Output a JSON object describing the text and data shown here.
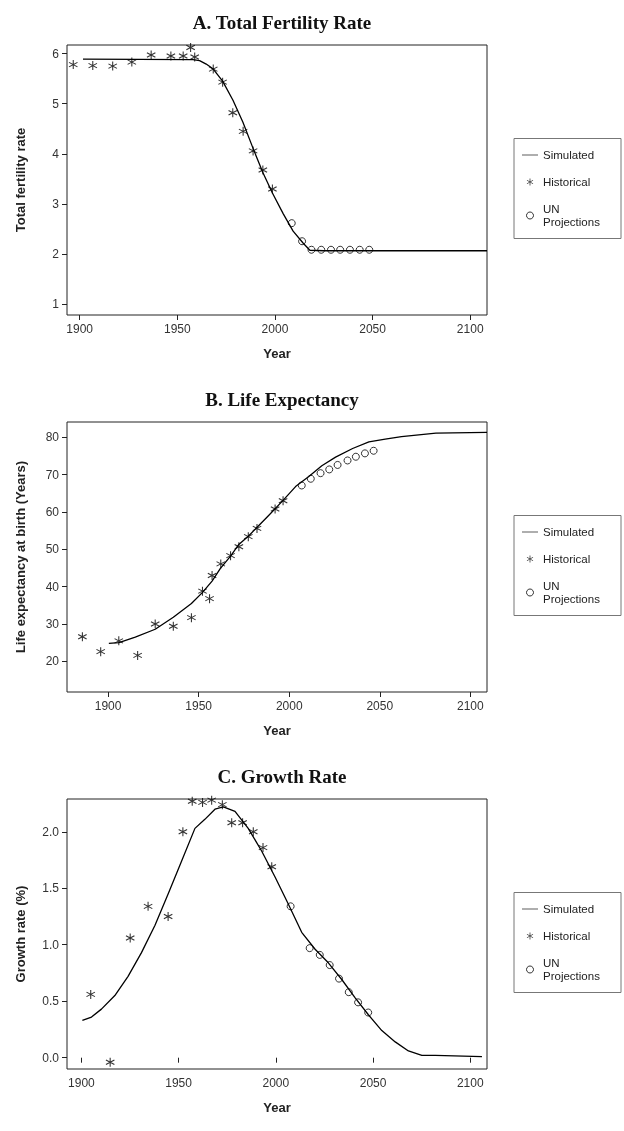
{
  "chart_data": [
    {
      "type": "line",
      "title": "A. Total Fertility Rate",
      "xlabel": "Year",
      "ylabel": "Total fertility rate",
      "xlim": [
        1893.5,
        2108.6
      ],
      "ylim": [
        0.79,
        6.17
      ],
      "xticks": [
        1900,
        1950,
        2000,
        2050,
        2100
      ],
      "yticks": [
        1,
        2,
        3,
        4,
        5,
        6
      ],
      "grid": false,
      "legend": "right",
      "series": [
        {
          "name": "Simulated",
          "type": "line",
          "color": "#000000",
          "marker": "none",
          "line_style": "solid",
          "x": [
            1901.7,
            1958,
            1961.4,
            1964.8,
            1968.4,
            1973.2,
            1978.5,
            1983.6,
            1988.8,
            1993.8,
            1998.7,
            2004.2,
            2009.3,
            2014.5,
            2017.9,
            2025,
            2108.6
          ],
          "values": [
            5.89,
            5.88,
            5.86,
            5.79,
            5.69,
            5.45,
            5.07,
            4.63,
            4.11,
            3.63,
            3.22,
            2.81,
            2.46,
            2.22,
            2.08,
            2.07,
            2.07
          ]
        },
        {
          "name": "Historical",
          "type": "scatter",
          "color": "#000000",
          "marker": "cross",
          "x": [
            1896.7,
            1906.7,
            1916.9,
            1926.7,
            1936.6,
            1946.7,
            1953.0,
            1956.8,
            1958.9,
            1968.4,
            1973.2,
            1978.4,
            1983.7,
            1988.8,
            1993.8,
            1998.7
          ],
          "values": [
            5.78,
            5.76,
            5.75,
            5.83,
            5.97,
            5.95,
            5.95,
            6.12,
            5.93,
            5.69,
            5.43,
            4.82,
            4.45,
            4.06,
            3.68,
            3.3
          ]
        },
        {
          "name": "UN Projections",
          "type": "scatter",
          "color": "#000000",
          "marker": "circle",
          "x": [
            2008.6,
            2013.9,
            2018.7,
            2023.7,
            2028.7,
            2033.4,
            2038.4,
            2043.4,
            2048.3
          ],
          "values": [
            2.62,
            2.26,
            2.09,
            2.09,
            2.09,
            2.09,
            2.09,
            2.09,
            2.09
          ]
        }
      ]
    },
    {
      "type": "line",
      "title": "B. Life Expectancy",
      "xlabel": "Year",
      "ylabel": "Life expectancy at birth (Years)",
      "xlim": [
        1877.3,
        2109.2
      ],
      "ylim": [
        11.8,
        84.1
      ],
      "xticks": [
        1900,
        1950,
        2000,
        2050,
        2100
      ],
      "yticks": [
        20,
        30,
        40,
        50,
        60,
        70,
        80
      ],
      "grid": false,
      "legend": "right",
      "series": [
        {
          "name": "Simulated",
          "type": "line",
          "color": "#000000",
          "marker": "none",
          "line_style": "solid",
          "x": [
            1900.4,
            1906,
            1915,
            1926,
            1936,
            1946,
            1952,
            1957.4,
            1962,
            1967.6,
            1972,
            1977.4,
            1982,
            1988.5,
            1996.6,
            2003.5,
            2011,
            2018,
            2025.6,
            2035,
            2044,
            2053,
            2062,
            2081,
            2109.2
          ],
          "values": [
            24.8,
            25.0,
            26.5,
            28.6,
            31.8,
            35.5,
            38.4,
            41.5,
            44.9,
            48.2,
            51.2,
            53.5,
            55.8,
            59.0,
            63.1,
            66.8,
            69.6,
            72.4,
            74.7,
            77.0,
            78.8,
            79.5,
            80.2,
            81.1,
            81.3
          ]
        },
        {
          "name": "Historical",
          "type": "scatter",
          "color": "#000000",
          "marker": "cross",
          "x": [
            1885.8,
            1895.9,
            1905.9,
            1916.3,
            1926.0,
            1936.0,
            1946.0,
            1952.1,
            1956.0,
            1957.4,
            1962.2,
            1967.6,
            1972.2,
            1977.4,
            1982.2,
            1992.2,
            1996.6
          ],
          "values": [
            26.6,
            22.6,
            25.5,
            21.6,
            30.0,
            29.4,
            31.7,
            38.8,
            36.8,
            43.0,
            46.1,
            48.3,
            50.7,
            53.4,
            55.6,
            60.8,
            63.0
          ]
        },
        {
          "name": "UN Projections",
          "type": "scatter",
          "color": "#000000",
          "marker": "circle",
          "x": [
            2006.9,
            2011.9,
            2017.3,
            2022.1,
            2026.7,
            2032.2,
            2036.8,
            2041.8,
            2046.6
          ],
          "values": [
            67.1,
            68.9,
            70.4,
            71.4,
            72.6,
            73.8,
            74.8,
            75.7,
            76.4
          ]
        }
      ]
    },
    {
      "type": "line",
      "title": "C. Growth Rate",
      "xlabel": "Year",
      "ylabel": "Growth rate (%)",
      "xlim": [
        1892.6,
        2108.6
      ],
      "ylim": [
        -0.1,
        2.29
      ],
      "xticks": [
        1900,
        1950,
        2000,
        2050,
        2100
      ],
      "yticks": [
        {
          "value": 0,
          "label": "0.0"
        },
        {
          "value": 0.5,
          "label": "0.5"
        },
        {
          "value": 1,
          "label": "1.0"
        },
        {
          "value": 1.5,
          "label": "1.5"
        },
        {
          "value": 2,
          "label": "2.0"
        }
      ],
      "grid": false,
      "legend": "right",
      "series": [
        {
          "name": "Simulated",
          "type": "line",
          "color": "#000000",
          "marker": "none",
          "line_style": "solid",
          "x": [
            1900.5,
            1905.2,
            1910.3,
            1917.2,
            1924,
            1930.9,
            1937.8,
            1944.6,
            1951.5,
            1958.4,
            1963.5,
            1968.7,
            1973,
            1979,
            1985.8,
            1992.7,
            1999.6,
            2006.4,
            2013.3,
            2020.2,
            2027,
            2034,
            2040.8,
            2047.6,
            2054.5,
            2061.4,
            2068.2,
            2075.1,
            2082,
            2106
          ],
          "values": [
            0.33,
            0.36,
            0.43,
            0.55,
            0.72,
            0.93,
            1.17,
            1.45,
            1.74,
            2.03,
            2.11,
            2.2,
            2.22,
            2.18,
            2.03,
            1.83,
            1.6,
            1.36,
            1.11,
            0.96,
            0.84,
            0.69,
            0.53,
            0.38,
            0.24,
            0.14,
            0.06,
            0.02,
            0.02,
            0.01
          ]
        },
        {
          "name": "Historical",
          "type": "scatter",
          "color": "#000000",
          "marker": "cross",
          "x": [
            1904.8,
            1914.8,
            1925.1,
            1934.3,
            1944.6,
            1952.2,
            1957.0,
            1962.3,
            1967.0,
            1972.5,
            1977.3,
            1982.9,
            1988.4,
            1993.4,
            1997.9
          ],
          "values": [
            0.56,
            -0.04,
            1.06,
            1.34,
            1.25,
            2.0,
            2.27,
            2.26,
            2.28,
            2.24,
            2.08,
            2.08,
            2.0,
            1.86,
            1.69
          ]
        },
        {
          "name": "UN Projections",
          "type": "scatter",
          "color": "#000000",
          "marker": "circle",
          "x": [
            2007.6,
            2017.4,
            2022.6,
            2027.7,
            2032.5,
            2037.5,
            2042.3,
            2047.5
          ],
          "values": [
            1.34,
            0.97,
            0.91,
            0.82,
            0.7,
            0.58,
            0.49,
            0.4
          ]
        }
      ]
    }
  ]
}
